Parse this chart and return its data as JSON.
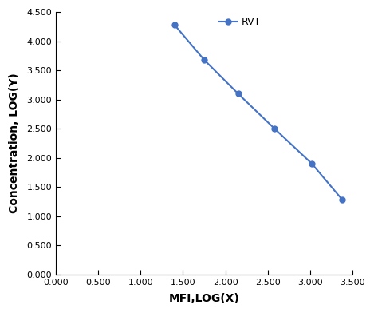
{
  "x": [
    1.4,
    1.75,
    2.15,
    2.58,
    3.02,
    3.38
  ],
  "y": [
    4.28,
    3.68,
    3.1,
    2.5,
    1.9,
    1.28
  ],
  "line_color": "#4472C4",
  "marker": "o",
  "marker_size": 5,
  "line_width": 1.5,
  "legend_label": "RVT",
  "xlabel": "MFI,LOG(X)",
  "ylabel": "Concentration, LOG(Y)",
  "xlim": [
    0.0,
    3.5
  ],
  "ylim": [
    0.0,
    4.5
  ],
  "xticks": [
    0.0,
    0.5,
    1.0,
    1.5,
    2.0,
    2.5,
    3.0,
    3.5
  ],
  "yticks": [
    0.0,
    0.5,
    1.0,
    1.5,
    2.0,
    2.5,
    3.0,
    3.5,
    4.0,
    4.5
  ],
  "tick_label_fontsize": 8,
  "axis_label_fontsize": 10,
  "legend_fontsize": 9,
  "background_color": "#ffffff",
  "spine_color": "#000000"
}
